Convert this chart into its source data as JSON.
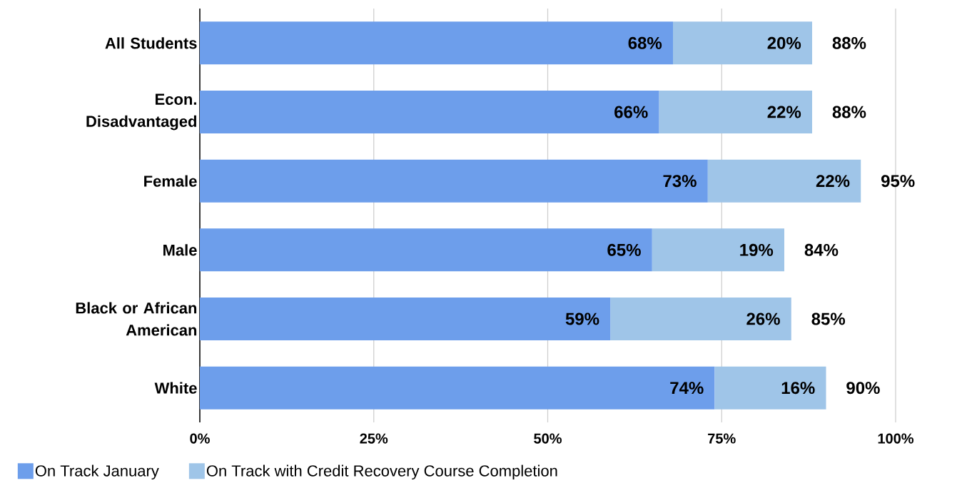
{
  "chart_data": {
    "type": "bar",
    "orientation": "horizontal",
    "stacked": true,
    "categories": [
      "All Students",
      "Econ. Disadvantaged",
      "Female",
      "Male",
      "Black or African American",
      "White"
    ],
    "series": [
      {
        "name": "On Track January",
        "color": "#6d9eeb",
        "values": [
          68,
          66,
          73,
          65,
          59,
          74
        ],
        "value_labels": [
          "68%",
          "66%",
          "73%",
          "65%",
          "59%",
          "74%"
        ]
      },
      {
        "name": "On Track with Credit Recovery Course Completion",
        "color": "#9fc5e8",
        "values": [
          20,
          22,
          22,
          19,
          26,
          16
        ],
        "value_labels": [
          "20%",
          "22%",
          "22%",
          "19%",
          "26%",
          "16%"
        ]
      }
    ],
    "totals": [
      "88%",
      "88%",
      "95%",
      "84%",
      "85%",
      "90%"
    ],
    "xlim": [
      0,
      100
    ],
    "xticks": [
      {
        "value": 0,
        "label": "0%"
      },
      {
        "value": 25,
        "label": "25%"
      },
      {
        "value": 50,
        "label": "50%"
      },
      {
        "value": 75,
        "label": "75%"
      },
      {
        "value": 100,
        "label": "100%"
      }
    ],
    "grid": "x",
    "legend": "bottom left"
  }
}
